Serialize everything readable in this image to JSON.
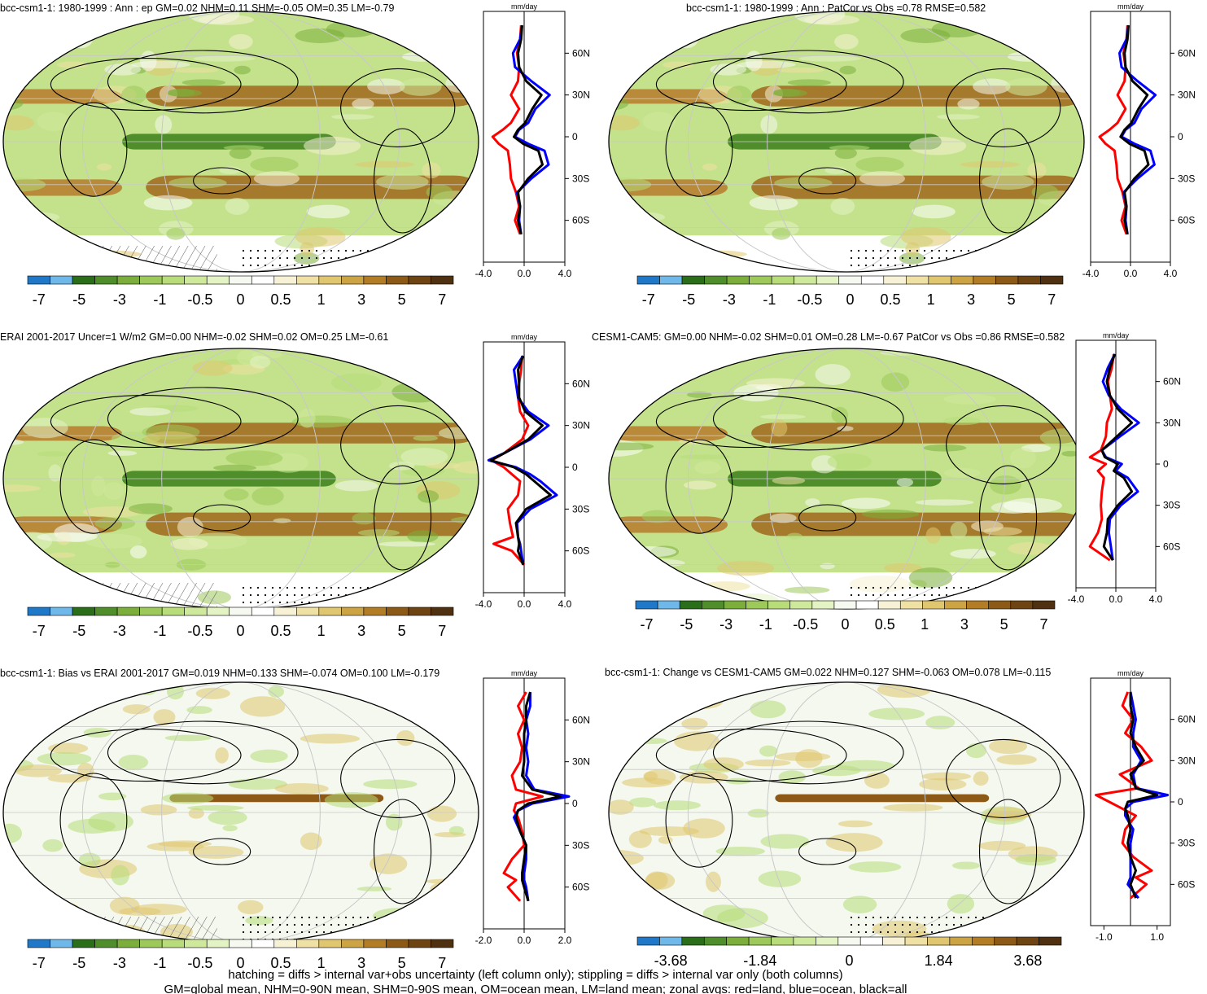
{
  "colors": {
    "land": "#ff0000",
    "ocean": "#0000ff",
    "all": "#000000",
    "palette": [
      "#1f78c8",
      "#6fb8ea",
      "#2b6e1a",
      "#4f8e2a",
      "#7cae3b",
      "#9dc85a",
      "#b7dc79",
      "#cfe99c",
      "#e3f3c4",
      "#f5f9f0",
      "#ffffff",
      "#f7f2d6",
      "#efe1a3",
      "#e0c66e",
      "#cda443",
      "#b37d25",
      "#8c5a16",
      "#6e4512",
      "#4f3010"
    ]
  },
  "units": "mm/day",
  "footer": {
    "line1": "hatching = diffs > internal var+obs uncertainty (left column only); stippling = diffs > internal var only (both columns)",
    "line2": "GM=global mean, NHM=0-90N mean, SHM=0-90S mean, OM=ocean mean, LM=land mean; zonal avgs: red=land, blue=ocean, black=all"
  },
  "panels": [
    {
      "title": "bcc-csm1-1: 1980-1999 : Ann : ep GM=0.02 NHM=0.11 SHM=-0.05 OM=0.35 LM=-0.79",
      "colorbar_labels": [
        "-7",
        "-5",
        "-3",
        "-1",
        "-0.5",
        "0",
        "0.5",
        "1",
        "3",
        "5",
        "7"
      ],
      "chart_data": {
        "type": "line",
        "ylabel": "",
        "yticks": [
          "60N",
          "30N",
          "0",
          "30S",
          "60S"
        ],
        "xticks": [
          "-4.0",
          "0.0",
          "4.0"
        ],
        "xlim": [
          -4,
          4
        ],
        "ylim": [
          -90,
          90
        ],
        "lat": [
          80,
          70,
          60,
          50,
          40,
          30,
          20,
          10,
          5,
          0,
          -5,
          -10,
          -20,
          -30,
          -40,
          -50,
          -60,
          -70
        ],
        "series": [
          {
            "name": "land",
            "values": [
              -0.3,
              -0.4,
              -0.7,
              -0.5,
              -0.6,
              -1.3,
              -0.5,
              -1.3,
              -2.1,
              -3.1,
              -2.5,
              -1.6,
              -1.4,
              -1.3,
              -0.8,
              -0.5,
              -0.9,
              -0.4
            ]
          },
          {
            "name": "ocean",
            "values": [
              -0.2,
              -0.4,
              -1.1,
              -0.9,
              0.7,
              2.5,
              1.1,
              0.4,
              -0.5,
              -0.9,
              0.4,
              2.0,
              2.4,
              0.7,
              -0.7,
              -0.4,
              -0.5,
              -0.3
            ]
          },
          {
            "name": "all",
            "values": [
              -0.2,
              -0.3,
              -0.6,
              -0.5,
              0.2,
              1.7,
              0.8,
              0.1,
              -0.6,
              -1.0,
              -0.1,
              1.4,
              1.8,
              0.4,
              -0.6,
              -0.4,
              -0.6,
              -0.3
            ]
          }
        ]
      }
    },
    {
      "title": "bcc-csm1-1: 1980-1999 : Ann : PatCor vs Obs =0.78 RMSE=0.582",
      "colorbar_labels": [
        "-7",
        "-5",
        "-3",
        "-1",
        "-0.5",
        "0",
        "0.5",
        "1",
        "3",
        "5",
        "7"
      ],
      "chart_data": {
        "type": "line",
        "yticks": [
          "60N",
          "30N",
          "0",
          "30S",
          "60S"
        ],
        "xticks": [
          "-4.0",
          "0.0",
          "4.0"
        ],
        "xlim": [
          -4,
          4
        ],
        "ylim": [
          -90,
          90
        ],
        "lat": [
          80,
          70,
          60,
          50,
          40,
          30,
          20,
          10,
          5,
          0,
          -5,
          -10,
          -20,
          -30,
          -40,
          -50,
          -60,
          -70
        ],
        "series": [
          {
            "name": "land",
            "values": [
              -0.3,
              -0.4,
              -0.7,
              -0.5,
              -0.6,
              -1.3,
              -0.5,
              -1.3,
              -2.1,
              -3.1,
              -2.5,
              -1.6,
              -1.4,
              -1.3,
              -0.8,
              -0.5,
              -0.9,
              -0.4
            ]
          },
          {
            "name": "ocean",
            "values": [
              -0.2,
              -0.4,
              -1.1,
              -0.9,
              0.7,
              2.5,
              1.1,
              0.4,
              -0.5,
              -0.9,
              0.4,
              2.0,
              2.4,
              0.7,
              -0.7,
              -0.4,
              -0.5,
              -0.3
            ]
          },
          {
            "name": "all",
            "values": [
              -0.2,
              -0.3,
              -0.6,
              -0.5,
              0.2,
              1.7,
              0.8,
              0.1,
              -0.6,
              -1.0,
              -0.1,
              1.4,
              1.8,
              0.4,
              -0.6,
              -0.4,
              -0.6,
              -0.3
            ]
          }
        ]
      }
    },
    {
      "title": "ERAI 2001-2017 Uncer=1 W/m2 GM=0.00 NHM=-0.02 SHM=0.02 OM=0.25 LM=-0.61",
      "colorbar_labels": [
        "-7",
        "-5",
        "-3",
        "-1",
        "-0.5",
        "0",
        "0.5",
        "1",
        "3",
        "5",
        "7"
      ],
      "chart_data": {
        "type": "line",
        "yticks": [
          "60N",
          "30N",
          "0",
          "30S",
          "60S"
        ],
        "xticks": [
          "-4.0",
          "0.0",
          "4.0"
        ],
        "xlim": [
          -4,
          4
        ],
        "ylim": [
          -90,
          90
        ],
        "lat": [
          80,
          70,
          60,
          50,
          40,
          30,
          20,
          10,
          5,
          0,
          -5,
          -10,
          -20,
          -30,
          -40,
          -50,
          -55,
          -60,
          -70
        ],
        "series": [
          {
            "name": "land",
            "values": [
              -0.2,
              -0.3,
              -0.5,
              -0.6,
              -0.4,
              0.4,
              -0.2,
              -2.0,
              -3.2,
              -2.0,
              -1.2,
              -0.4,
              -0.6,
              -1.6,
              -1.4,
              -1.1,
              -3.0,
              -1.2,
              0.0
            ]
          },
          {
            "name": "ocean",
            "values": [
              -0.1,
              -1.0,
              -0.8,
              -0.6,
              0.4,
              2.4,
              0.6,
              -2.0,
              -3.5,
              -0.8,
              0.6,
              1.6,
              3.2,
              0.6,
              -0.7,
              -0.6,
              -0.4,
              -0.3,
              -0.1
            ]
          },
          {
            "name": "all",
            "values": [
              -0.1,
              -0.6,
              -0.5,
              -0.5,
              0.1,
              1.8,
              0.4,
              -2.0,
              -3.3,
              -1.0,
              0.2,
              1.0,
              2.6,
              0.2,
              -0.8,
              -0.6,
              -0.5,
              -0.6,
              -0.1
            ]
          }
        ]
      }
    },
    {
      "title": "CESM1-CAM5: GM=0.00 NHM=-0.02 SHM=0.01 OM=0.28 LM=-0.67 PatCor vs Obs =0.86 RMSE=0.582",
      "colorbar_labels": [
        "-7",
        "-5",
        "-3",
        "-1",
        "-0.5",
        "0",
        "0.5",
        "1",
        "3",
        "5",
        "7"
      ],
      "chart_data": {
        "type": "line",
        "yticks": [
          "60N",
          "30N",
          "0",
          "30S",
          "60S"
        ],
        "xticks": [
          "-4.0",
          "0.0",
          "4.0"
        ],
        "xlim": [
          -4,
          4
        ],
        "ylim": [
          -90,
          90
        ],
        "lat": [
          80,
          70,
          60,
          50,
          40,
          30,
          20,
          10,
          5,
          0,
          -5,
          -10,
          -20,
          -30,
          -40,
          -50,
          -60,
          -70
        ],
        "series": [
          {
            "name": "land",
            "values": [
              -0.2,
              -0.4,
              -0.8,
              -0.6,
              -0.4,
              -0.9,
              -1.0,
              -1.5,
              -2.6,
              -1.0,
              -1.8,
              -1.2,
              -1.4,
              -1.5,
              -1.4,
              -1.8,
              -2.6,
              -0.6
            ]
          },
          {
            "name": "ocean",
            "values": [
              -0.1,
              -0.8,
              -1.3,
              -0.7,
              0.5,
              2.3,
              0.4,
              -1.4,
              -1.0,
              0.6,
              0.0,
              1.2,
              2.2,
              0.5,
              -0.6,
              -0.7,
              -0.5,
              -0.3
            ]
          },
          {
            "name": "all",
            "values": [
              -0.1,
              -0.6,
              -0.9,
              -0.6,
              0.2,
              1.6,
              0.1,
              -1.4,
              -1.1,
              0.2,
              -0.2,
              0.8,
              1.6,
              0.2,
              -0.8,
              -0.9,
              -1.2,
              -0.3
            ]
          }
        ]
      }
    },
    {
      "title": "bcc-csm1-1: Bias vs ERAI 2001-2017 GM=0.019 NHM=0.133 SHM=-0.074 OM=0.100 LM=-0.179",
      "colorbar_labels": [
        "-7",
        "-5",
        "-3",
        "-1",
        "-0.5",
        "0",
        "0.5",
        "1",
        "3",
        "5",
        "7"
      ],
      "chart_data": {
        "type": "line",
        "yticks": [
          "60N",
          "30N",
          "0",
          "30S",
          "60S"
        ],
        "xticks": [
          "-2.0",
          "0.0",
          "2.0"
        ],
        "xlim": [
          -2,
          2
        ],
        "ylim": [
          -90,
          90
        ],
        "lat": [
          80,
          70,
          60,
          50,
          40,
          30,
          20,
          10,
          5,
          0,
          -5,
          -10,
          -20,
          -30,
          -40,
          -50,
          -55,
          -60,
          -70
        ],
        "series": [
          {
            "name": "land",
            "values": [
              0.1,
              -0.3,
              0.0,
              -0.3,
              -0.1,
              -0.2,
              -0.6,
              -0.4,
              0.9,
              -0.4,
              -0.5,
              -0.3,
              -0.1,
              0.0,
              -0.6,
              -1.0,
              -0.4,
              -0.8,
              -0.2
            ]
          },
          {
            "name": "ocean",
            "values": [
              0.3,
              0.3,
              0.1,
              0.2,
              0.1,
              0.2,
              0.1,
              0.5,
              2.2,
              0.4,
              -0.3,
              -0.5,
              -0.2,
              0.1,
              0.1,
              0.0,
              0.0,
              0.1,
              0.2
            ]
          },
          {
            "name": "all",
            "values": [
              0.3,
              0.1,
              0.1,
              0.0,
              0.0,
              0.0,
              -0.1,
              0.4,
              1.8,
              0.2,
              -0.3,
              -0.4,
              -0.2,
              0.1,
              0.0,
              -0.1,
              -0.1,
              0.0,
              0.2
            ]
          }
        ]
      }
    },
    {
      "title": "bcc-csm1-1: Change vs CESM1-CAM5 GM=0.022 NHM=0.127 SHM=-0.063 OM=0.078 LM=-0.115",
      "colorbar_labels": [
        "-3.68",
        "-1.84",
        "0",
        "1.84",
        "3.68"
      ],
      "chart_data": {
        "type": "line",
        "yticks": [
          "60N",
          "30N",
          "0",
          "30S",
          "60S"
        ],
        "xticks": [
          "-1.0",
          "1.0"
        ],
        "xlim": [
          -1.5,
          1.5
        ],
        "ylim": [
          -90,
          90
        ],
        "lat": [
          80,
          70,
          60,
          50,
          40,
          30,
          20,
          10,
          5,
          0,
          -5,
          -10,
          -20,
          -30,
          -40,
          -50,
          -55,
          -60,
          -70
        ],
        "series": [
          {
            "name": "land",
            "values": [
              -0.1,
              -0.3,
              0.1,
              -0.2,
              0.4,
              0.8,
              -0.4,
              0.3,
              -1.3,
              -0.8,
              -0.3,
              0.2,
              -0.2,
              -0.3,
              0.1,
              0.8,
              0.2,
              0.6,
              0.0
            ]
          },
          {
            "name": "ocean",
            "values": [
              0.0,
              0.1,
              0.2,
              0.1,
              0.1,
              0.4,
              0.1,
              0.2,
              1.4,
              0.1,
              -0.2,
              -0.2,
              0.1,
              0.0,
              0.0,
              0.0,
              0.0,
              -0.1,
              0.3
            ]
          },
          {
            "name": "all",
            "values": [
              0.0,
              0.0,
              0.1,
              0.0,
              0.2,
              0.5,
              0.0,
              0.2,
              1.0,
              -0.1,
              -0.2,
              -0.1,
              0.0,
              -0.1,
              0.0,
              0.2,
              0.1,
              0.0,
              0.2
            ]
          }
        ]
      }
    }
  ]
}
